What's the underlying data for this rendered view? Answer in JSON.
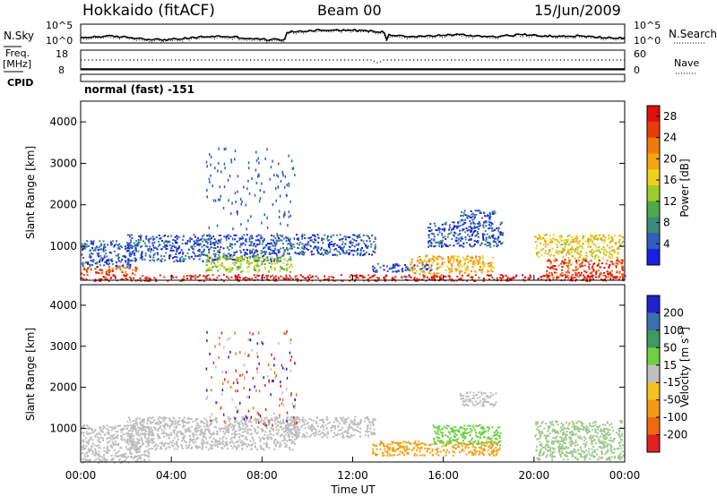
{
  "header": {
    "station": "Hokkaido (fitACF)",
    "beam": "Beam 00",
    "date": "15/Jun/2009"
  },
  "nsky_panel": {
    "left_label": "N.Sky",
    "right_label": "N.Search",
    "y_ticks_left": [
      "10^5",
      "10^0"
    ],
    "y_ticks_right": [
      "10^5",
      "10^0"
    ]
  },
  "freq_panel": {
    "left_label_top": "Freq.",
    "left_label_unit": "[MHz]",
    "right_label": "Nave",
    "y_ticks_left": [
      "18",
      "8"
    ],
    "y_ticks_right": [
      "60",
      "0"
    ]
  },
  "cpid": {
    "label": "CPID",
    "value": "normal (fast) -151"
  },
  "chart_data": [
    {
      "type": "heatmap",
      "name": "power",
      "ylabel": "Slant Range [km]",
      "xlabel": "",
      "yticks": [
        "1000",
        "2000",
        "3000",
        "4000"
      ],
      "ylim": [
        180,
        4500
      ],
      "colorbar": {
        "label": "Power [dB]",
        "ticks": [
          "4",
          "8",
          "12",
          "16",
          "20",
          "24",
          "28"
        ],
        "range": [
          0,
          30
        ],
        "colors": [
          "#1a1ee0",
          "#2f5dc0",
          "#3c8a78",
          "#4fa94a",
          "#9ccc2a",
          "#f0d21c",
          "#f5a511",
          "#f07a0c",
          "#e83a0c",
          "#e00e0e"
        ]
      },
      "regions_hours_km_level": [
        {
          "x": [
            0.0,
            24.0
          ],
          "y": [
            180,
            330
          ],
          "level": 9
        },
        {
          "x": [
            0.0,
            2.5
          ],
          "y": [
            330,
            520
          ],
          "level": 8
        },
        {
          "x": [
            0.0,
            2.2
          ],
          "y": [
            520,
            1150
          ],
          "level": 1
        },
        {
          "x": [
            2.0,
            9.0
          ],
          "y": [
            650,
            1300
          ],
          "level": 1
        },
        {
          "x": [
            5.5,
            9.3
          ],
          "y": [
            400,
            800
          ],
          "level": 4
        },
        {
          "x": [
            9.0,
            13.0
          ],
          "y": [
            800,
            1300
          ],
          "level": 1
        },
        {
          "x": [
            12.8,
            15.5
          ],
          "y": [
            400,
            600
          ],
          "level": 1
        },
        {
          "x": [
            14.5,
            18.2
          ],
          "y": [
            350,
            800
          ],
          "level": 6
        },
        {
          "x": [
            15.3,
            18.6
          ],
          "y": [
            1000,
            1600
          ],
          "level": 1
        },
        {
          "x": [
            16.7,
            18.3
          ],
          "y": [
            1550,
            1900
          ],
          "level": 1
        },
        {
          "x": [
            20.0,
            23.9
          ],
          "y": [
            700,
            1300
          ],
          "level": 5
        },
        {
          "x": [
            20.5,
            23.9
          ],
          "y": [
            250,
            700
          ],
          "level": 8
        }
      ]
    },
    {
      "type": "heatmap",
      "name": "velocity",
      "ylabel": "Slant Range [km]",
      "xlabel": "Time UT",
      "xticks": [
        "00:00",
        "04:00",
        "08:00",
        "12:00",
        "16:00",
        "20:00",
        "00:00"
      ],
      "xlim": [
        0,
        24
      ],
      "yticks": [
        "1000",
        "2000",
        "3000",
        "4000"
      ],
      "ylim": [
        180,
        4500
      ],
      "colorbar": {
        "label": "Velocity [m s",
        "label_sup": "-1",
        "label_end": "]",
        "ticks": [
          "200",
          "100",
          "50",
          "15",
          "-15",
          "-50",
          "-100",
          "-200"
        ],
        "colors": [
          "#2222d0",
          "#3a6fb0",
          "#3f9a60",
          "#6ed040",
          "#c0c0c0",
          "#f5c020",
          "#f59a16",
          "#f06a10",
          "#e22020"
        ]
      },
      "regions_hours_km_color": [
        {
          "x": [
            0.0,
            3.0
          ],
          "y": [
            180,
            1100
          ],
          "color": "grey"
        },
        {
          "x": [
            2.0,
            9.5
          ],
          "y": [
            500,
            1300
          ],
          "color": "grey"
        },
        {
          "x": [
            9.0,
            13.0
          ],
          "y": [
            800,
            1300
          ],
          "color": "grey"
        },
        {
          "x": [
            12.8,
            18.5
          ],
          "y": [
            350,
            700
          ],
          "color": "orange"
        },
        {
          "x": [
            15.5,
            18.5
          ],
          "y": [
            600,
            1100
          ],
          "color": "green"
        },
        {
          "x": [
            16.7,
            18.3
          ],
          "y": [
            1550,
            1900
          ],
          "color": "grey"
        },
        {
          "x": [
            20.0,
            23.9
          ],
          "y": [
            250,
            1200
          ],
          "color": "green-grey"
        }
      ]
    }
  ]
}
